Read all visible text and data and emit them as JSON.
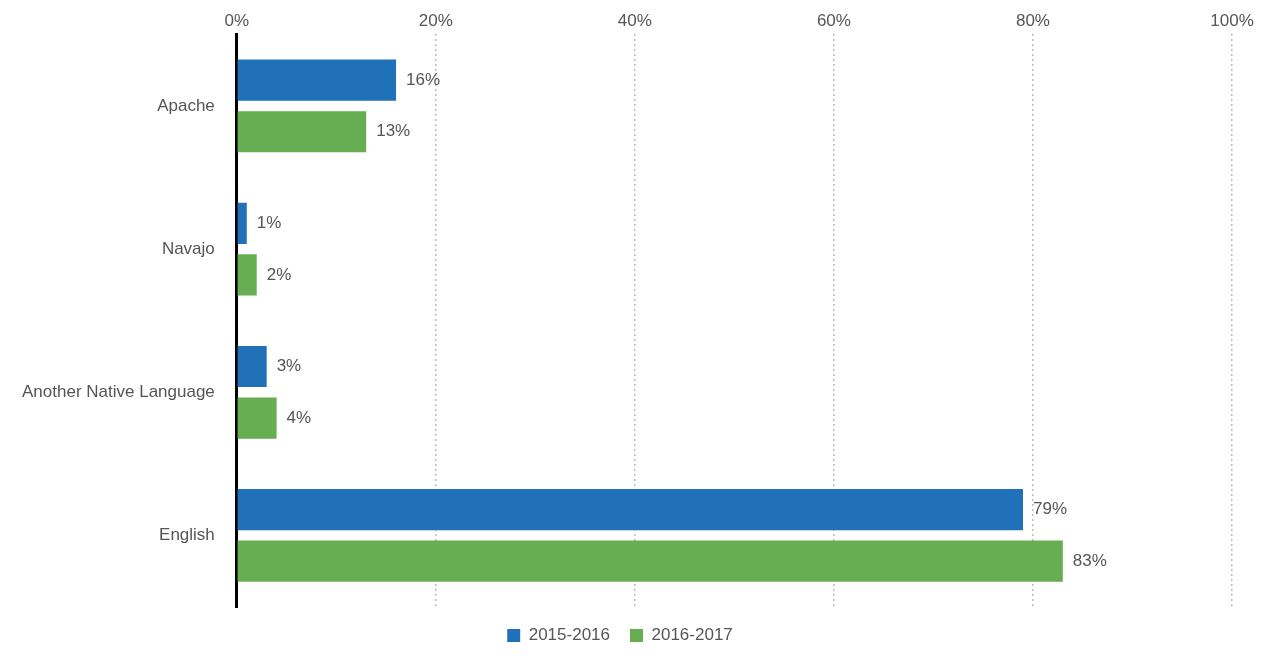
{
  "chart_data": {
    "type": "bar",
    "orientation": "horizontal",
    "categories": [
      "Apache",
      "Navajo",
      "Another Native Language",
      "English"
    ],
    "series": [
      {
        "name": "2015-2016",
        "color": "#2171b8",
        "values": [
          16,
          1,
          3,
          79
        ],
        "value_labels": [
          "16%",
          "1%",
          "3%",
          "79%"
        ]
      },
      {
        "name": "2016-2017",
        "color": "#67ad52",
        "values": [
          13,
          2,
          4,
          83
        ],
        "value_labels": [
          "13%",
          "2%",
          "4%",
          "83%"
        ]
      }
    ],
    "xlim": [
      0,
      100
    ],
    "xticks": [
      {
        "value": 0,
        "label": "0%"
      },
      {
        "value": 20,
        "label": "20%"
      },
      {
        "value": 40,
        "label": "40%"
      },
      {
        "value": 60,
        "label": "60%"
      },
      {
        "value": 80,
        "label": "80%"
      },
      {
        "value": 100,
        "label": "100%"
      }
    ],
    "grid": "x",
    "legend": "bottom"
  }
}
